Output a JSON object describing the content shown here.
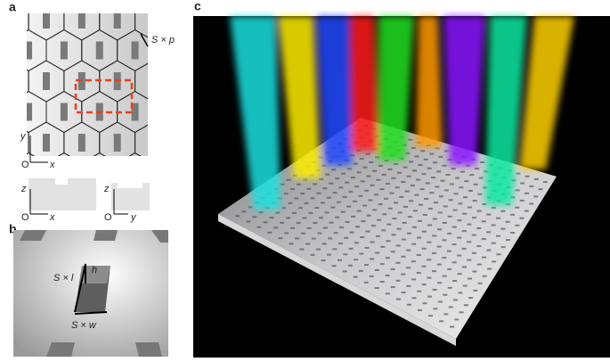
{
  "panels": {
    "a": {
      "label": "a",
      "scale_label": "S × p",
      "axes_top": {
        "y": "y",
        "origin": "O",
        "x": "x"
      },
      "axes_side_xz": {
        "z": "z",
        "origin": "O",
        "x": "x"
      },
      "axes_side_yz": {
        "z": "z",
        "origin": "O",
        "y": "y"
      }
    },
    "b": {
      "label": "b",
      "height": "h",
      "length": "S × l",
      "width": "S × w"
    },
    "c": {
      "label": "c"
    }
  }
}
